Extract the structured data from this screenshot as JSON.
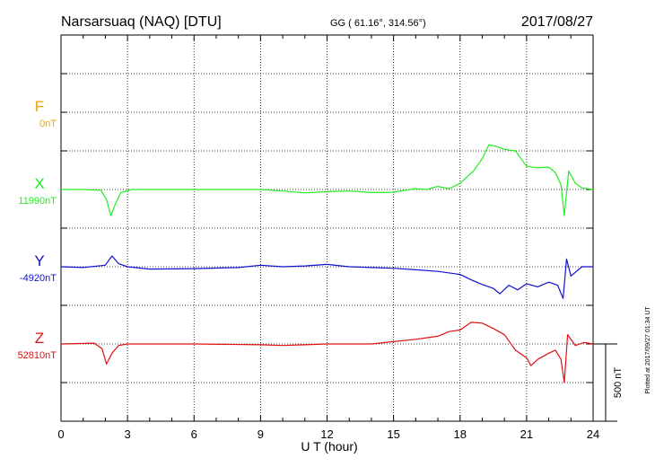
{
  "header": {
    "station": "Narsarsuaq (NAQ)  [DTU]",
    "coords": "GG ( 61.16°, 314.56°)",
    "date": "2017/08/27"
  },
  "footer": {
    "xlabel": "U T (hour)",
    "plotted_note": "Plotted at 2017/09/27 01:34 UT"
  },
  "scale_bar": {
    "label": "500 nT"
  },
  "components": [
    {
      "letter": "F",
      "baseline": "0nT",
      "color": "#f5a000"
    },
    {
      "letter": "X",
      "baseline": "11990nT",
      "color": "#22ee22"
    },
    {
      "letter": "Y",
      "baseline": "-4920nT",
      "color": "#1010d0"
    },
    {
      "letter": "Z",
      "baseline": "52810nT",
      "color": "#e01010"
    }
  ],
  "chart_data": {
    "type": "line",
    "title": "Narsarsuaq (NAQ)  [DTU]",
    "xlabel": "U T (hour)",
    "xlim": [
      0,
      24
    ],
    "x_ticks": [
      "0",
      "3",
      "6",
      "9",
      "12",
      "15",
      "18",
      "21",
      "24"
    ],
    "grid": true,
    "scale_nT": 500,
    "series": [
      {
        "name": "X",
        "baseline": "11990nT",
        "color": "#22ee22",
        "points": [
          [
            0,
            0
          ],
          [
            1,
            0
          ],
          [
            1.8,
            -5
          ],
          [
            2.05,
            -65
          ],
          [
            2.25,
            -170
          ],
          [
            2.45,
            -95
          ],
          [
            2.7,
            -20
          ],
          [
            3.0,
            -8
          ],
          [
            3.2,
            0
          ],
          [
            4,
            0
          ],
          [
            6,
            0
          ],
          [
            8,
            0
          ],
          [
            9,
            0
          ],
          [
            10,
            -10
          ],
          [
            11,
            -22
          ],
          [
            12,
            -14
          ],
          [
            13,
            -10
          ],
          [
            14,
            -20
          ],
          [
            15,
            -18
          ],
          [
            15.5,
            -5
          ],
          [
            16,
            5
          ],
          [
            16.5,
            0
          ],
          [
            17,
            20
          ],
          [
            17.5,
            5
          ],
          [
            18,
            40
          ],
          [
            18.3,
            80
          ],
          [
            18.6,
            120
          ],
          [
            19,
            200
          ],
          [
            19.3,
            290
          ],
          [
            19.6,
            280
          ],
          [
            20,
            260
          ],
          [
            20.5,
            250
          ],
          [
            20.8,
            190
          ],
          [
            21,
            150
          ],
          [
            21.5,
            140
          ],
          [
            22,
            145
          ],
          [
            22.3,
            110
          ],
          [
            22.55,
            30
          ],
          [
            22.7,
            -170
          ],
          [
            22.9,
            120
          ],
          [
            23.2,
            40
          ],
          [
            23.5,
            10
          ],
          [
            24,
            0
          ]
        ]
      },
      {
        "name": "Y",
        "baseline": "-4920nT",
        "color": "#1010d0",
        "points": [
          [
            0,
            0
          ],
          [
            1,
            -5
          ],
          [
            2,
            10
          ],
          [
            2.3,
            70
          ],
          [
            2.6,
            20
          ],
          [
            3,
            0
          ],
          [
            4,
            -15
          ],
          [
            6,
            -12
          ],
          [
            8,
            -5
          ],
          [
            9,
            10
          ],
          [
            10,
            0
          ],
          [
            11,
            5
          ],
          [
            12,
            15
          ],
          [
            13,
            0
          ],
          [
            14,
            -5
          ],
          [
            15,
            -10
          ],
          [
            16,
            -20
          ],
          [
            17,
            -30
          ],
          [
            18,
            -50
          ],
          [
            18.5,
            -85
          ],
          [
            19,
            -115
          ],
          [
            19.5,
            -140
          ],
          [
            19.8,
            -175
          ],
          [
            20.2,
            -120
          ],
          [
            20.6,
            -150
          ],
          [
            21,
            -110
          ],
          [
            21.5,
            -130
          ],
          [
            22,
            -100
          ],
          [
            22.4,
            -120
          ],
          [
            22.65,
            -205
          ],
          [
            22.8,
            50
          ],
          [
            23,
            -60
          ],
          [
            23.5,
            0
          ],
          [
            24,
            0
          ]
        ]
      },
      {
        "name": "Z",
        "baseline": "52810nT",
        "color": "#e01010",
        "points": [
          [
            0,
            0
          ],
          [
            1.5,
            5
          ],
          [
            1.85,
            -30
          ],
          [
            2.05,
            -130
          ],
          [
            2.3,
            -60
          ],
          [
            2.6,
            -10
          ],
          [
            3,
            0
          ],
          [
            6,
            0
          ],
          [
            9,
            -5
          ],
          [
            10,
            -10
          ],
          [
            11,
            -5
          ],
          [
            12,
            0
          ],
          [
            14,
            0
          ],
          [
            15,
            15
          ],
          [
            16,
            30
          ],
          [
            17,
            50
          ],
          [
            17.5,
            80
          ],
          [
            18,
            90
          ],
          [
            18.5,
            140
          ],
          [
            19,
            135
          ],
          [
            19.5,
            100
          ],
          [
            20,
            60
          ],
          [
            20.5,
            -40
          ],
          [
            21,
            -90
          ],
          [
            21.2,
            -140
          ],
          [
            21.5,
            -100
          ],
          [
            22,
            -60
          ],
          [
            22.3,
            -40
          ],
          [
            22.55,
            -100
          ],
          [
            22.7,
            -250
          ],
          [
            22.85,
            60
          ],
          [
            23.2,
            -10
          ],
          [
            23.6,
            10
          ],
          [
            24,
            0
          ]
        ]
      }
    ]
  }
}
